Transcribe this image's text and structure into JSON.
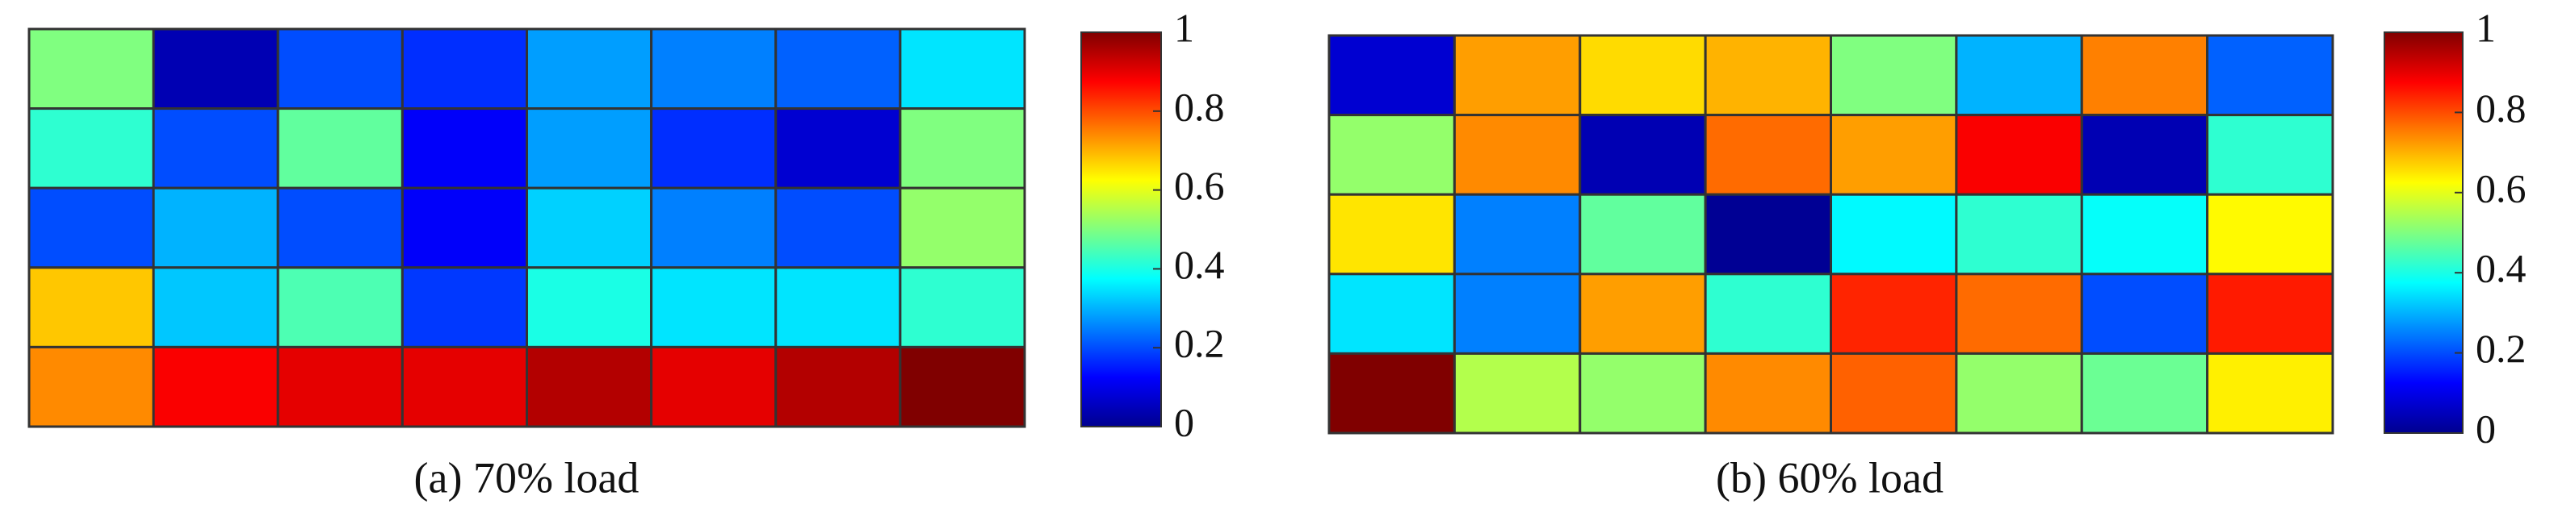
{
  "chart_data": [
    {
      "type": "heatmap",
      "title": "(a) 70% load",
      "values": [
        [
          0.5,
          0.05,
          0.2,
          0.17,
          0.28,
          0.25,
          0.22,
          0.35
        ],
        [
          0.42,
          0.2,
          0.47,
          0.12,
          0.28,
          0.17,
          0.08,
          0.5
        ],
        [
          0.2,
          0.3,
          0.2,
          0.12,
          0.33,
          0.25,
          0.2,
          0.52
        ],
        [
          0.68,
          0.32,
          0.45,
          0.18,
          0.4,
          0.35,
          0.35,
          0.42
        ],
        [
          0.74,
          0.88,
          0.9,
          0.9,
          0.95,
          0.9,
          0.95,
          1.0
        ]
      ],
      "clim": [
        0,
        1
      ],
      "cticks": [
        0,
        0.2,
        0.4,
        0.6,
        0.8,
        1
      ],
      "colormap": "jet"
    },
    {
      "type": "heatmap",
      "title": "(b) 60% load",
      "values": [
        [
          0.08,
          0.72,
          0.66,
          0.7,
          0.5,
          0.3,
          0.75,
          0.22
        ],
        [
          0.52,
          0.74,
          0.05,
          0.77,
          0.72,
          0.88,
          0.05,
          0.42
        ],
        [
          0.65,
          0.25,
          0.47,
          0.02,
          0.37,
          0.42,
          0.38,
          0.63
        ],
        [
          0.35,
          0.25,
          0.72,
          0.42,
          0.84,
          0.77,
          0.2,
          0.85
        ],
        [
          1.0,
          0.55,
          0.52,
          0.74,
          0.78,
          0.52,
          0.48,
          0.64
        ]
      ],
      "clim": [
        0,
        1
      ],
      "cticks": [
        0,
        0.2,
        0.4,
        0.6,
        0.8,
        1
      ],
      "colormap": "jet"
    }
  ]
}
